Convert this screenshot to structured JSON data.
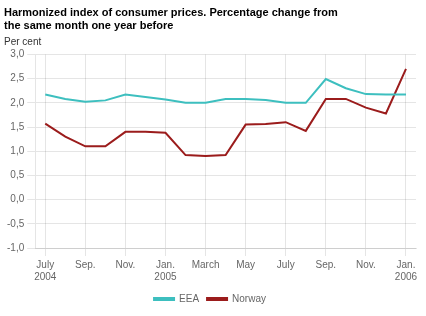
{
  "chart_data": {
    "type": "line",
    "title": "Harmonized index of consumer prices. Percentage change from\nthe same month one year before",
    "ylabel": "Per cent",
    "x": [
      0,
      1,
      2,
      3,
      4,
      5,
      6,
      7,
      8,
      9,
      10,
      11,
      12,
      13,
      14,
      15,
      16,
      17,
      18
    ],
    "series": [
      {
        "name": "EEA",
        "color": "#3dbfbf",
        "values": [
          2.17,
          2.08,
          2.02,
          2.05,
          2.17,
          2.12,
          2.07,
          2.0,
          2.0,
          2.08,
          2.08,
          2.06,
          2.0,
          2.0,
          2.49,
          2.3,
          2.18,
          2.17,
          2.17
        ]
      },
      {
        "name": "Norway",
        "color": "#9b1c1c",
        "values": [
          1.57,
          1.3,
          1.1,
          1.1,
          1.4,
          1.4,
          1.38,
          0.92,
          0.9,
          0.92,
          1.55,
          1.56,
          1.6,
          1.42,
          2.08,
          2.08,
          1.9,
          1.78,
          2.7
        ]
      }
    ],
    "xlim": [
      -0.5,
      18.5
    ],
    "xticks": [
      {
        "value": 0,
        "label": "July\n2004"
      },
      {
        "value": 2,
        "label": "Sep."
      },
      {
        "value": 4,
        "label": "Nov."
      },
      {
        "value": 6,
        "label": "Jan.\n2005"
      },
      {
        "value": 8,
        "label": "March"
      },
      {
        "value": 10,
        "label": "May"
      },
      {
        "value": 12,
        "label": "July"
      },
      {
        "value": 14,
        "label": "Sep."
      },
      {
        "value": 16,
        "label": "Nov."
      },
      {
        "value": 18,
        "label": "Jan.\n2006"
      }
    ],
    "ylim": [
      -1.0,
      3.0
    ],
    "yticks": [
      {
        "value": -1.0,
        "label": "-1,0"
      },
      {
        "value": -0.5,
        "label": "-0,5"
      },
      {
        "value": 0.0,
        "label": "0,0"
      },
      {
        "value": 0.5,
        "label": "0,5"
      },
      {
        "value": 1.0,
        "label": "1,0"
      },
      {
        "value": 1.5,
        "label": "1,5"
      },
      {
        "value": 2.0,
        "label": "2,0"
      },
      {
        "value": 2.5,
        "label": "2,5"
      },
      {
        "value": 3.0,
        "label": "3,0"
      }
    ],
    "grid": true,
    "legend": "bottom"
  }
}
